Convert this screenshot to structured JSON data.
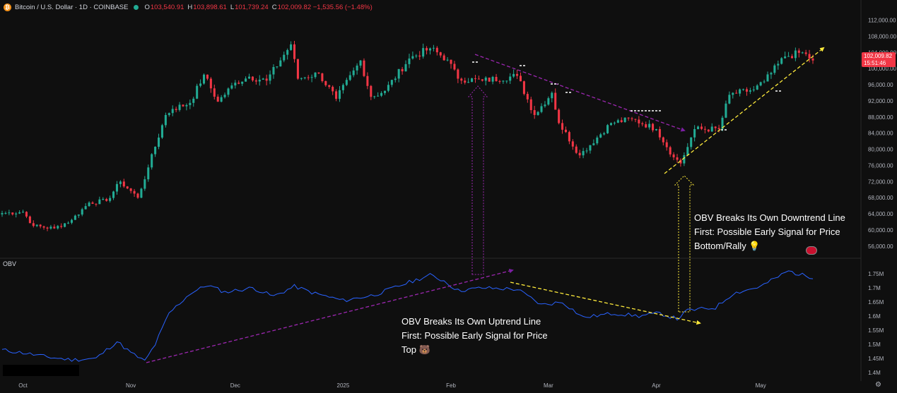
{
  "header": {
    "coin_symbol": "₿",
    "symbol": "Bitcoin / U.S. Dollar · 1D · COINBASE",
    "open_label": "O",
    "open": "103,540.91",
    "high_label": "H",
    "high": "103,898.61",
    "low_label": "L",
    "low": "101,739.24",
    "close_label": "C",
    "close": "102,009.82 −1,535.56 (−1.48%)"
  },
  "price_tag": {
    "price": "102,009.82",
    "countdown": "15:51:46"
  },
  "obv_title": "OBV",
  "annotations": {
    "bottom": [
      "OBV Breaks Its Own Downtrend Line",
      "First: Possible Early Signal for Price",
      "Bottom/Rally 💡"
    ],
    "top": [
      "OBV Breaks Its Own Uptrend Line",
      "First: Possible Early Signal for Price",
      "Top 🐻"
    ]
  },
  "icons": {
    "flag": "us-flag-icon",
    "settings": "gear-icon"
  },
  "colors": {
    "up": "#22ab94",
    "down": "#f23645",
    "obv_line": "#2962ff",
    "purple": "#9c27b0",
    "yellow": "#ffeb3b",
    "background": "#0f0f0f"
  },
  "chart_data": [
    {
      "type": "candlestick",
      "title": "Bitcoin / U.S. Dollar · 1D · COINBASE",
      "y_ticks": [
        112000,
        108000,
        104000,
        100000,
        96000,
        92000,
        88000,
        84000,
        80000,
        76000,
        72000,
        68000,
        64000,
        60000,
        56000
      ],
      "y_tick_labels": [
        "112,000.00",
        "108,000.00",
        "104,000.00",
        "100,000.00",
        "96,000.00",
        "92,000.00",
        "88,000.00",
        "84,000.00",
        "80,000.00",
        "76,000.00",
        "72,000.00",
        "68,000.00",
        "64,000.00",
        "60,000.00",
        "56,000.00"
      ],
      "x_ticks": [
        "Oct",
        "Nov",
        "Dec",
        "2025",
        "Feb",
        "Mar",
        "Apr",
        "May"
      ],
      "ylim": [
        53000,
        113500
      ],
      "close_anchors": [
        {
          "date": "2024-09-26",
          "close": 64200
        },
        {
          "date": "2024-10-01",
          "close": 64500
        },
        {
          "date": "2024-10-04",
          "close": 61000
        },
        {
          "date": "2024-10-10",
          "close": 60400
        },
        {
          "date": "2024-10-15",
          "close": 62500
        },
        {
          "date": "2024-10-20",
          "close": 66800
        },
        {
          "date": "2024-10-25",
          "close": 67200
        },
        {
          "date": "2024-10-29",
          "close": 72000
        },
        {
          "date": "2024-11-03",
          "close": 68000
        },
        {
          "date": "2024-11-06",
          "close": 75500
        },
        {
          "date": "2024-11-11",
          "close": 88500
        },
        {
          "date": "2024-11-13",
          "close": 90000
        },
        {
          "date": "2024-11-18",
          "close": 91500
        },
        {
          "date": "2024-11-22",
          "close": 98500
        },
        {
          "date": "2024-11-26",
          "close": 91800
        },
        {
          "date": "2024-12-01",
          "close": 96500
        },
        {
          "date": "2024-12-05",
          "close": 98000
        },
        {
          "date": "2024-12-10",
          "close": 97000
        },
        {
          "date": "2024-12-17",
          "close": 106000
        },
        {
          "date": "2024-12-19",
          "close": 97500
        },
        {
          "date": "2024-12-25",
          "close": 98800
        },
        {
          "date": "2024-12-30",
          "close": 92500
        },
        {
          "date": "2025-01-06",
          "close": 102000
        },
        {
          "date": "2025-01-09",
          "close": 93000
        },
        {
          "date": "2025-01-13",
          "close": 94500
        },
        {
          "date": "2025-01-20",
          "close": 102500
        },
        {
          "date": "2025-01-26",
          "close": 105000
        },
        {
          "date": "2025-01-31",
          "close": 102200
        },
        {
          "date": "2025-02-03",
          "close": 97500
        },
        {
          "date": "2025-02-10",
          "close": 97000
        },
        {
          "date": "2025-02-20",
          "close": 98200
        },
        {
          "date": "2025-02-25",
          "close": 88500
        },
        {
          "date": "2025-03-02",
          "close": 94000
        },
        {
          "date": "2025-03-04",
          "close": 86500
        },
        {
          "date": "2025-03-10",
          "close": 78500
        },
        {
          "date": "2025-03-19",
          "close": 86500
        },
        {
          "date": "2025-03-25",
          "close": 87500
        },
        {
          "date": "2025-04-01",
          "close": 85000
        },
        {
          "date": "2025-04-06",
          "close": 78000
        },
        {
          "date": "2025-04-08",
          "close": 76500
        },
        {
          "date": "2025-04-12",
          "close": 85000
        },
        {
          "date": "2025-04-19",
          "close": 85000
        },
        {
          "date": "2025-04-22",
          "close": 93500
        },
        {
          "date": "2025-04-29",
          "close": 94800
        },
        {
          "date": "2025-05-02",
          "close": 96800
        },
        {
          "date": "2025-05-08",
          "close": 103000
        },
        {
          "date": "2025-05-13",
          "close": 104000
        },
        {
          "date": "2025-05-16",
          "close": 102009.82
        }
      ],
      "last_price": 102009.82
    },
    {
      "type": "line",
      "title": "OBV",
      "y_ticks": [
        1750000,
        1700000,
        1650000,
        1600000,
        1550000,
        1500000,
        1450000,
        1400000
      ],
      "y_tick_labels": [
        "1.75M",
        "1.7M",
        "1.65M",
        "1.6M",
        "1.55M",
        "1.5M",
        "1.45M",
        "1.4M"
      ],
      "ylim": [
        1375000,
        1790000
      ],
      "points": [
        {
          "date": "2024-09-25",
          "value": 1480000
        },
        {
          "date": "2024-10-01",
          "value": 1470000
        },
        {
          "date": "2024-10-08",
          "value": 1455000
        },
        {
          "date": "2024-10-15",
          "value": 1445000
        },
        {
          "date": "2024-10-22",
          "value": 1450000
        },
        {
          "date": "2024-10-28",
          "value": 1510000
        },
        {
          "date": "2024-11-01",
          "value": 1470000
        },
        {
          "date": "2024-11-05",
          "value": 1440000
        },
        {
          "date": "2024-11-08",
          "value": 1500000
        },
        {
          "date": "2024-11-12",
          "value": 1610000
        },
        {
          "date": "2024-11-18",
          "value": 1680000
        },
        {
          "date": "2024-11-23",
          "value": 1710000
        },
        {
          "date": "2024-11-28",
          "value": 1685000
        },
        {
          "date": "2024-12-06",
          "value": 1700000
        },
        {
          "date": "2024-12-12",
          "value": 1670000
        },
        {
          "date": "2024-12-18",
          "value": 1705000
        },
        {
          "date": "2024-12-24",
          "value": 1680000
        },
        {
          "date": "2025-01-01",
          "value": 1655000
        },
        {
          "date": "2025-01-10",
          "value": 1675000
        },
        {
          "date": "2025-01-20",
          "value": 1720000
        },
        {
          "date": "2025-01-26",
          "value": 1745000
        },
        {
          "date": "2025-01-30",
          "value": 1725000
        },
        {
          "date": "2025-02-03",
          "value": 1690000
        },
        {
          "date": "2025-02-10",
          "value": 1700000
        },
        {
          "date": "2025-02-20",
          "value": 1695000
        },
        {
          "date": "2025-02-27",
          "value": 1640000
        },
        {
          "date": "2025-03-05",
          "value": 1650000
        },
        {
          "date": "2025-03-11",
          "value": 1595000
        },
        {
          "date": "2025-03-20",
          "value": 1610000
        },
        {
          "date": "2025-03-27",
          "value": 1600000
        },
        {
          "date": "2025-04-02",
          "value": 1610000
        },
        {
          "date": "2025-04-07",
          "value": 1590000
        },
        {
          "date": "2025-04-10",
          "value": 1620000
        },
        {
          "date": "2025-04-18",
          "value": 1630000
        },
        {
          "date": "2025-04-23",
          "value": 1680000
        },
        {
          "date": "2025-05-01",
          "value": 1705000
        },
        {
          "date": "2025-05-09",
          "value": 1760000
        },
        {
          "date": "2025-05-12",
          "value": 1748000
        },
        {
          "date": "2025-05-16",
          "value": 1738000
        }
      ]
    }
  ]
}
